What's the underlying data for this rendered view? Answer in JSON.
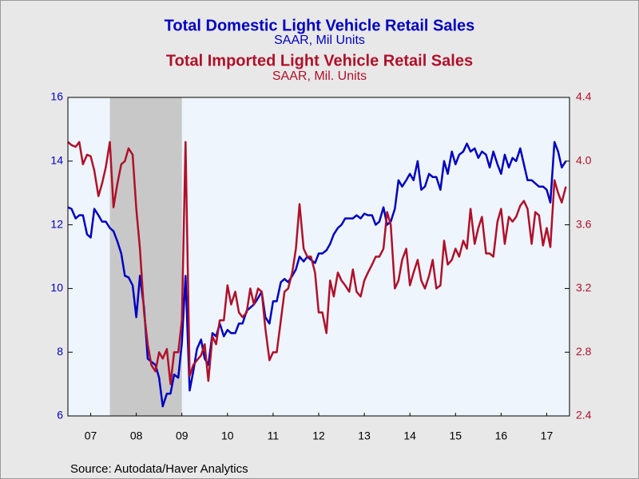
{
  "chart_data": {
    "type": "line",
    "series": [
      {
        "name": "Total Domestic Light Vehicle Retail Sales",
        "unit": "SAAR, Mil Units",
        "color": "#0000c0",
        "axis": "y",
        "values": [
          12.55,
          12.5,
          12.2,
          12.3,
          12.3,
          11.7,
          11.6,
          12.5,
          12.3,
          12.1,
          12.1,
          11.9,
          11.8,
          11.5,
          11.1,
          10.4,
          10.35,
          10.1,
          9.1,
          10.4,
          9.4,
          7.8,
          7.7,
          7.6,
          7.2,
          6.3,
          6.7,
          6.7,
          7.3,
          7.2,
          8.3,
          10.4,
          6.8,
          7.4,
          8.1,
          8.4,
          7.8,
          7.6,
          8.6,
          8.5,
          8.9,
          8.5,
          8.7,
          8.6,
          8.6,
          8.9,
          8.9,
          9.3,
          9.4,
          9.5,
          9.7,
          9.9,
          9.1,
          8.9,
          9.6,
          9.6,
          10.2,
          10.3,
          10.2,
          10.4,
          10.6,
          11.0,
          10.85,
          11.0,
          10.9,
          10.8,
          11.1,
          11.1,
          11.2,
          11.4,
          11.7,
          11.9,
          12.0,
          12.2,
          12.2,
          12.2,
          12.3,
          12.2,
          12.35,
          12.3,
          12.3,
          12.0,
          12.1,
          12.55,
          12.0,
          12.1,
          12.5,
          13.4,
          13.2,
          13.4,
          13.6,
          13.4,
          14.0,
          13.1,
          13.2,
          13.6,
          13.5,
          13.5,
          13.1,
          14.0,
          13.6,
          14.3,
          13.9,
          14.2,
          14.3,
          14.55,
          14.3,
          14.4,
          14.1,
          14.3,
          14.2,
          13.8,
          14.3,
          13.9,
          13.6,
          14.2,
          13.8,
          14.1,
          14.0,
          14.4,
          13.9,
          13.4,
          13.4,
          13.3,
          13.2,
          13.2,
          13.1,
          12.7,
          14.6,
          14.3,
          13.8,
          14.0
        ]
      },
      {
        "name": "Total Imported Light Vehicle Retail Sales",
        "unit": "SAAR, Mil. Units",
        "color": "#b0102a",
        "axis": "y2",
        "values": [
          4.12,
          4.1,
          4.09,
          4.12,
          3.98,
          4.04,
          4.03,
          3.94,
          3.78,
          3.86,
          3.96,
          4.12,
          3.71,
          3.85,
          3.98,
          4.0,
          4.08,
          4.04,
          3.7,
          3.45,
          3.05,
          2.85,
          2.72,
          2.68,
          2.8,
          2.76,
          2.82,
          2.6,
          2.8,
          2.8,
          3.0,
          4.12,
          2.65,
          2.72,
          2.75,
          2.78,
          2.85,
          2.62,
          2.9,
          2.85,
          3.0,
          3.0,
          3.22,
          3.1,
          3.18,
          3.05,
          3.02,
          3.05,
          3.2,
          3.1,
          3.2,
          3.18,
          2.95,
          2.75,
          2.8,
          2.8,
          3.0,
          3.18,
          3.2,
          3.3,
          3.45,
          3.73,
          3.45,
          3.4,
          3.4,
          3.3,
          3.05,
          3.05,
          2.92,
          3.25,
          3.15,
          3.3,
          3.25,
          3.22,
          3.18,
          3.32,
          3.18,
          3.15,
          3.25,
          3.3,
          3.35,
          3.4,
          3.4,
          3.45,
          3.68,
          3.6,
          3.2,
          3.25,
          3.38,
          3.45,
          3.22,
          3.3,
          3.38,
          3.25,
          3.2,
          3.28,
          3.38,
          3.2,
          3.22,
          3.5,
          3.35,
          3.38,
          3.45,
          3.4,
          3.5,
          3.45,
          3.7,
          3.48,
          3.58,
          3.65,
          3.42,
          3.42,
          3.4,
          3.62,
          3.7,
          3.48,
          3.65,
          3.62,
          3.65,
          3.72,
          3.75,
          3.7,
          3.48,
          3.68,
          3.66,
          3.47,
          3.58,
          3.46,
          3.88,
          3.8,
          3.74,
          3.84
        ]
      }
    ],
    "x": [
      2007.0,
      2007.08,
      2007.17,
      2007.25,
      2007.33,
      2007.42,
      2007.5,
      2007.58,
      2007.67,
      2007.75,
      2007.83,
      2007.92,
      2008.0,
      2008.08,
      2008.17,
      2008.25,
      2008.33,
      2008.42,
      2008.5,
      2008.58,
      2008.67,
      2008.75,
      2008.83,
      2008.92,
      2009.0,
      2009.08,
      2009.17,
      2009.25,
      2009.33,
      2009.42,
      2009.5,
      2009.58,
      2009.67,
      2009.75,
      2009.83,
      2009.92,
      2010.0,
      2010.08,
      2010.17,
      2010.25,
      2010.33,
      2010.42,
      2010.5,
      2010.58,
      2010.67,
      2010.75,
      2010.83,
      2010.92,
      2011.0,
      2011.08,
      2011.17,
      2011.25,
      2011.33,
      2011.42,
      2011.5,
      2011.58,
      2011.67,
      2011.75,
      2011.83,
      2011.92,
      2012.0,
      2012.08,
      2012.17,
      2012.25,
      2012.33,
      2012.42,
      2012.5,
      2012.58,
      2012.67,
      2012.75,
      2012.83,
      2012.92,
      2013.0,
      2013.08,
      2013.17,
      2013.25,
      2013.33,
      2013.42,
      2013.5,
      2013.58,
      2013.67,
      2013.75,
      2013.83,
      2013.92,
      2014.0,
      2014.08,
      2014.17,
      2014.25,
      2014.33,
      2014.42,
      2014.5,
      2014.58,
      2014.67,
      2014.75,
      2014.83,
      2014.92,
      2015.0,
      2015.08,
      2015.17,
      2015.25,
      2015.33,
      2015.42,
      2015.5,
      2015.58,
      2015.67,
      2015.75,
      2015.83,
      2015.92,
      2016.0,
      2016.08,
      2016.17,
      2016.25,
      2016.33,
      2016.42,
      2016.5,
      2016.58,
      2016.67,
      2016.75,
      2016.83,
      2016.92,
      2017.0,
      2017.08,
      2017.17,
      2017.25,
      2017.33,
      2017.42,
      2017.5,
      2017.58,
      2017.67,
      2017.75,
      2017.83,
      2017.92
    ],
    "xlim": [
      2007,
      2018
    ],
    "xticks": [
      {
        "value": 2007.5,
        "label": "07"
      },
      {
        "value": 2008.5,
        "label": "08"
      },
      {
        "value": 2009.5,
        "label": "09"
      },
      {
        "value": 2010.5,
        "label": "10"
      },
      {
        "value": 2011.5,
        "label": "11"
      },
      {
        "value": 2012.5,
        "label": "12"
      },
      {
        "value": 2013.5,
        "label": "13"
      },
      {
        "value": 2014.5,
        "label": "14"
      },
      {
        "value": 2015.5,
        "label": "15"
      },
      {
        "value": 2016.5,
        "label": "16"
      },
      {
        "value": 2017.5,
        "label": "17"
      }
    ],
    "ylim": [
      6,
      16
    ],
    "yticks": [
      6,
      8,
      10,
      12,
      14,
      16
    ],
    "y2lim": [
      2.4,
      4.4
    ],
    "y2ticks": [
      2.4,
      2.8,
      3.2,
      3.6,
      {
        "value": 4.0,
        "label": "4.0"
      },
      4.4
    ],
    "recession": [
      2007.92,
      2009.5
    ],
    "source": "Source:  Autodata/Haver Analytics"
  }
}
